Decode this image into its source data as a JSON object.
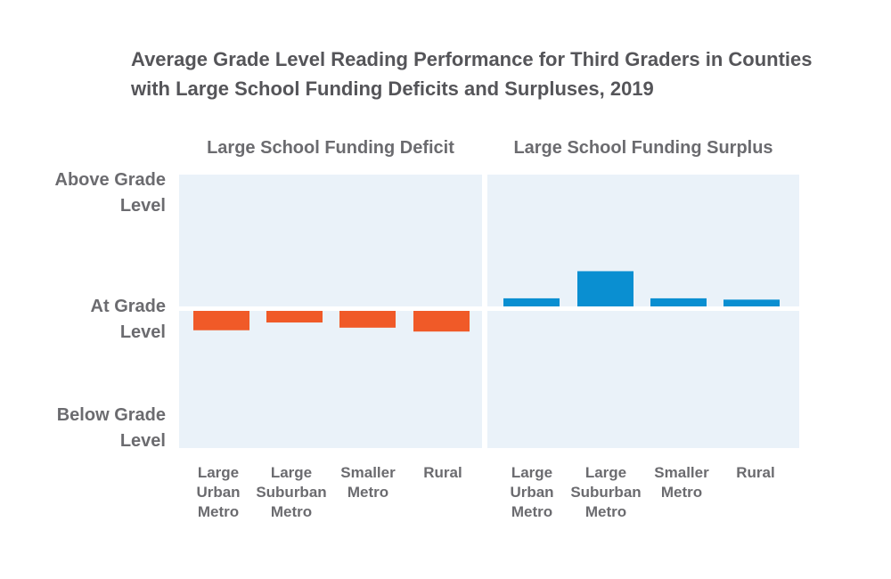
{
  "chart_data": {
    "type": "bar",
    "title_line1": "Average Grade Level Reading Performance for Third Graders in Counties",
    "title_line2": "with Large School Funding Deficits and Surpluses, 2019",
    "y_axis": {
      "ylim": [
        -1,
        1
      ],
      "tick_labels": [
        {
          "value": 1,
          "line1": "Above Grade",
          "line2": "Level"
        },
        {
          "value": 0,
          "line1": "At Grade",
          "line2": "Level"
        },
        {
          "value": -1,
          "line1": "Below Grade",
          "line2": "Level"
        }
      ]
    },
    "panels": [
      {
        "title": "Large School Funding Deficit",
        "color": "#f05a28",
        "categories": [
          {
            "line1": "Large",
            "line2": "Urban",
            "line3": "Metro"
          },
          {
            "line1": "Large",
            "line2": "Suburban",
            "line3": "Metro"
          },
          {
            "line1": "Smaller",
            "line2": "Metro",
            "line3": ""
          },
          {
            "line1": "Rural",
            "line2": "",
            "line3": ""
          }
        ],
        "values": [
          -0.15,
          -0.09,
          -0.13,
          -0.16
        ]
      },
      {
        "title": "Large School Funding Surplus",
        "color": "#0a8fd1",
        "categories": [
          {
            "line1": "Large",
            "line2": "Urban",
            "line3": "Metro"
          },
          {
            "line1": "Large",
            "line2": "Suburban",
            "line3": "Metro"
          },
          {
            "line1": "Smaller",
            "line2": "Metro",
            "line3": ""
          },
          {
            "line1": "Rural",
            "line2": "",
            "line3": ""
          }
        ],
        "values": [
          0.08,
          0.29,
          0.08,
          0.07
        ]
      }
    ],
    "panel_background": "#eaf2f9"
  }
}
